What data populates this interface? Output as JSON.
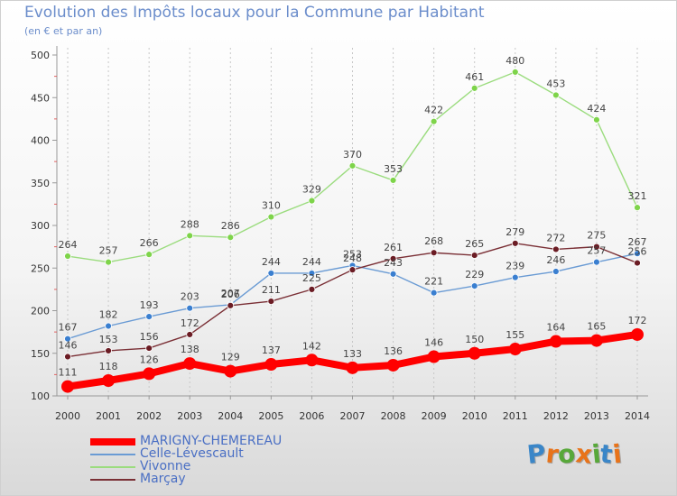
{
  "title": "Evolution des Impôts locaux pour la Commune par Habitant",
  "subtitle": "(en € et par an)",
  "brand": {
    "letters": [
      "P",
      "r",
      "o",
      "x",
      "i",
      "t",
      "i"
    ],
    "colors": [
      "#3a86c8",
      "#e8731a",
      "#58a83a",
      "#e8731a",
      "#58a83a",
      "#3a86c8",
      "#e8731a"
    ]
  },
  "chart_data": {
    "type": "line",
    "title": "Evolution des Impôts locaux pour la Commune par Habitant",
    "subtitle": "(en € et par an)",
    "x": [
      "2000",
      "2001",
      "2002",
      "2003",
      "2004",
      "2005",
      "2006",
      "2007",
      "2008",
      "2009",
      "2010",
      "2011",
      "2012",
      "2013",
      "2014"
    ],
    "ylim": [
      100,
      500
    ],
    "yticks": [
      100,
      150,
      200,
      250,
      300,
      350,
      400,
      450,
      500
    ],
    "grid": "vertical",
    "legend_position": "bottom-left",
    "series": [
      {
        "name": "MARIGNY-CHEMEREAU",
        "color": "#ff0000",
        "emphasis": true,
        "values": [
          111,
          118,
          126,
          138,
          129,
          137,
          142,
          133,
          136,
          146,
          150,
          155,
          164,
          165,
          172
        ]
      },
      {
        "name": "Celle-Lévescault",
        "color": "#6a9bd4",
        "marker_color": "#3a7fd0",
        "values": [
          167,
          182,
          193,
          203,
          207,
          244,
          244,
          253,
          243,
          221,
          229,
          239,
          246,
          257,
          267
        ]
      },
      {
        "name": "Vivonne",
        "color": "#9bdc7e",
        "marker_color": "#7ed44a",
        "values": [
          264,
          257,
          266,
          288,
          286,
          310,
          329,
          370,
          353,
          422,
          461,
          480,
          453,
          424,
          321
        ]
      },
      {
        "name": "Marçay",
        "color": "#7a2f35",
        "marker_color": "#6b1c24",
        "values": [
          146,
          153,
          156,
          172,
          206,
          211,
          225,
          248,
          261,
          268,
          265,
          279,
          272,
          275,
          256
        ]
      }
    ]
  }
}
